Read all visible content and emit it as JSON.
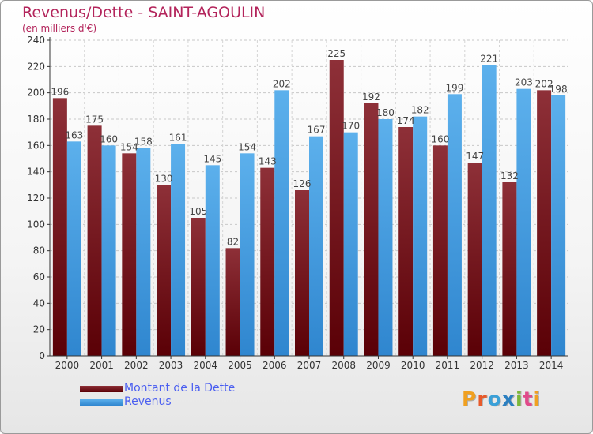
{
  "title": "Revenus/Dette - SAINT-AGOULIN",
  "subtitle": "(en milliers d'€)",
  "logo_text": "Proxiti",
  "colors": {
    "dette": "#7a1a22",
    "revenus": "#4da3e6",
    "title": "#b3245b",
    "legend_text": "#4a5ef0"
  },
  "chart_data": {
    "type": "bar",
    "title": "Revenus/Dette - SAINT-AGOULIN",
    "subtitle": "(en milliers d'€)",
    "categories": [
      "2000",
      "2001",
      "2002",
      "2003",
      "2004",
      "2005",
      "2006",
      "2007",
      "2008",
      "2009",
      "2010",
      "2011",
      "2012",
      "2013",
      "2014"
    ],
    "series": [
      {
        "name": "Montant de la Dette",
        "values": [
          196,
          175,
          154,
          130,
          105,
          82,
          143,
          126,
          225,
          192,
          174,
          160,
          147,
          132,
          202
        ]
      },
      {
        "name": "Revenus",
        "values": [
          163,
          160,
          158,
          161,
          145,
          154,
          202,
          167,
          170,
          180,
          182,
          199,
          221,
          203,
          198
        ]
      }
    ],
    "ylim": [
      0,
      240
    ],
    "yticks": [
      0,
      20,
      40,
      60,
      80,
      100,
      120,
      140,
      160,
      180,
      200,
      220,
      240
    ],
    "grid": true,
    "legend": "bottom-left"
  }
}
